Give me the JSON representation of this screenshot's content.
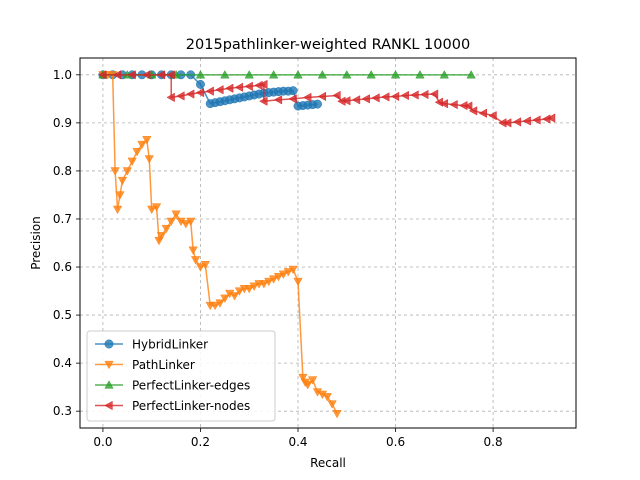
{
  "chart_data": {
    "type": "line",
    "title": "2015pathlinker-weighted RANKL 10000",
    "xlabel": "Recall",
    "ylabel": "Precision",
    "xlim": [
      -0.047,
      0.97
    ],
    "ylim": [
      0.265,
      1.035
    ],
    "xticks": [
      0.0,
      0.2,
      0.4,
      0.6,
      0.8
    ],
    "xtick_labels": [
      "0.0",
      "0.2",
      "0.4",
      "0.6",
      "0.8"
    ],
    "yticks": [
      0.3,
      0.4,
      0.5,
      0.6,
      0.7,
      0.8,
      0.9,
      1.0
    ],
    "ytick_labels": [
      "0.3",
      "0.4",
      "0.5",
      "0.6",
      "0.7",
      "0.8",
      "0.9",
      "1.0"
    ],
    "grid": true,
    "legend_position": "lower-left",
    "series": [
      {
        "name": "HybridLinker",
        "color": "#1f77b4",
        "marker": "circle",
        "x": [
          0.0,
          0.02,
          0.04,
          0.06,
          0.08,
          0.1,
          0.12,
          0.14,
          0.16,
          0.18,
          0.2,
          0.22,
          0.23,
          0.24,
          0.25,
          0.26,
          0.27,
          0.28,
          0.29,
          0.3,
          0.31,
          0.32,
          0.33,
          0.34,
          0.35,
          0.36,
          0.37,
          0.38,
          0.39,
          0.4,
          0.41,
          0.42,
          0.43,
          0.44
        ],
        "y": [
          1.0,
          1.0,
          1.0,
          1.0,
          1.0,
          1.0,
          1.0,
          1.0,
          1.0,
          1.0,
          0.98,
          0.94,
          0.942,
          0.944,
          0.946,
          0.948,
          0.95,
          0.952,
          0.954,
          0.956,
          0.958,
          0.96,
          0.962,
          0.963,
          0.964,
          0.965,
          0.966,
          0.966,
          0.967,
          0.935,
          0.936,
          0.937,
          0.938,
          0.939
        ]
      },
      {
        "name": "PathLinker",
        "color": "#ff7f0e",
        "marker": "triangle-down",
        "x": [
          0.0,
          0.01,
          0.02,
          0.025,
          0.03,
          0.035,
          0.04,
          0.05,
          0.06,
          0.07,
          0.08,
          0.09,
          0.095,
          0.1,
          0.11,
          0.115,
          0.12,
          0.13,
          0.14,
          0.15,
          0.16,
          0.17,
          0.18,
          0.185,
          0.19,
          0.2,
          0.21,
          0.22,
          0.23,
          0.24,
          0.25,
          0.26,
          0.27,
          0.28,
          0.29,
          0.3,
          0.31,
          0.32,
          0.33,
          0.34,
          0.35,
          0.36,
          0.37,
          0.38,
          0.39,
          0.4,
          0.41,
          0.415,
          0.42,
          0.43,
          0.44,
          0.45,
          0.46,
          0.47,
          0.48
        ],
        "y": [
          1.0,
          1.0,
          1.0,
          0.8,
          0.72,
          0.75,
          0.78,
          0.8,
          0.82,
          0.84,
          0.855,
          0.865,
          0.825,
          0.72,
          0.725,
          0.655,
          0.665,
          0.68,
          0.695,
          0.71,
          0.695,
          0.69,
          0.695,
          0.635,
          0.615,
          0.6,
          0.605,
          0.52,
          0.52,
          0.525,
          0.535,
          0.545,
          0.54,
          0.55,
          0.555,
          0.555,
          0.56,
          0.565,
          0.565,
          0.57,
          0.575,
          0.58,
          0.585,
          0.59,
          0.595,
          0.57,
          0.37,
          0.36,
          0.355,
          0.365,
          0.34,
          0.335,
          0.33,
          0.315,
          0.295
        ]
      },
      {
        "name": "PerfectLinker-edges",
        "color": "#2ca02c",
        "marker": "triangle-up",
        "x": [
          0.0,
          0.05,
          0.1,
          0.15,
          0.2,
          0.25,
          0.3,
          0.35,
          0.4,
          0.45,
          0.5,
          0.55,
          0.6,
          0.65,
          0.7,
          0.755
        ],
        "y": [
          1.0,
          1.0,
          1.0,
          1.0,
          1.0,
          1.0,
          1.0,
          1.0,
          1.0,
          1.0,
          1.0,
          1.0,
          1.0,
          1.0,
          1.0,
          1.0
        ]
      },
      {
        "name": "PerfectLinker-nodes",
        "color": "#d62728",
        "marker": "triangle-left",
        "x": [
          0.0,
          0.03,
          0.06,
          0.09,
          0.12,
          0.14,
          0.14,
          0.16,
          0.18,
          0.2,
          0.22,
          0.24,
          0.26,
          0.28,
          0.3,
          0.32,
          0.33,
          0.33,
          0.36,
          0.39,
          0.42,
          0.45,
          0.48,
          0.49,
          0.5,
          0.52,
          0.54,
          0.56,
          0.58,
          0.6,
          0.62,
          0.64,
          0.66,
          0.68,
          0.69,
          0.7,
          0.72,
          0.74,
          0.75,
          0.76,
          0.78,
          0.8,
          0.82,
          0.83,
          0.85,
          0.87,
          0.89,
          0.91,
          0.92
        ],
        "y": [
          1.0,
          1.0,
          1.0,
          1.0,
          1.0,
          1.0,
          0.953,
          0.956,
          0.96,
          0.963,
          0.966,
          0.969,
          0.972,
          0.974,
          0.976,
          0.978,
          0.98,
          0.945,
          0.948,
          0.95,
          0.953,
          0.955,
          0.957,
          0.945,
          0.946,
          0.948,
          0.95,
          0.952,
          0.954,
          0.955,
          0.957,
          0.958,
          0.959,
          0.96,
          0.943,
          0.94,
          0.938,
          0.936,
          0.935,
          0.925,
          0.92,
          0.915,
          0.9,
          0.9,
          0.902,
          0.904,
          0.906,
          0.908,
          0.91
        ]
      }
    ]
  }
}
